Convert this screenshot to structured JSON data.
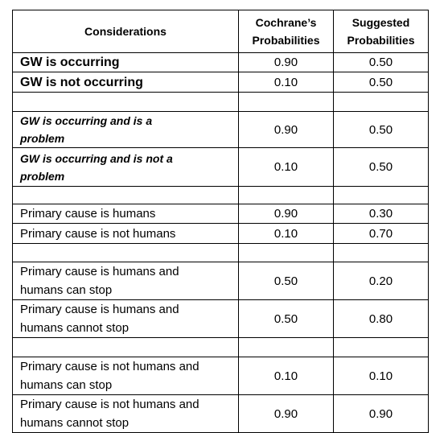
{
  "header": [
    "Considerations",
    "Cochrane’s Probabilities",
    "Suggested Probabilities"
  ],
  "groups": [
    [
      [
        "GW is occurring",
        "0.90",
        "0.50"
      ],
      [
        "GW is not occurring",
        "0.10",
        "0.50"
      ]
    ],
    [
      [
        "GW is occurring and is a problem",
        "0.90",
        "0.50"
      ],
      [
        "GW is occurring and is not a problem",
        "0.10",
        "0.50"
      ]
    ],
    [
      [
        "Primary cause is humans",
        "0.90",
        "0.30"
      ],
      [
        "Primary cause is not  humans",
        "0.10",
        "0.70"
      ]
    ],
    [
      [
        "Primary cause is humans and humans can stop",
        "0.50",
        "0.20"
      ],
      [
        "Primary cause is humans and humans cannot stop",
        "0.50",
        "0.80"
      ]
    ],
    [
      [
        "Primary cause is not humans and humans can stop",
        "0.10",
        "0.10"
      ],
      [
        "Primary cause is not humans and humans cannot stop",
        "0.90",
        "0.90"
      ]
    ]
  ]
}
